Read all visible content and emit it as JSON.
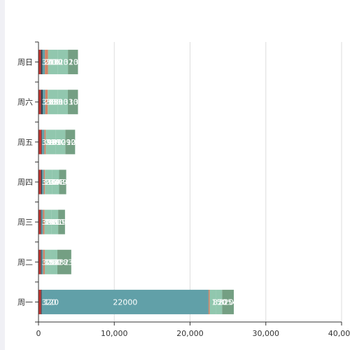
{
  "chart_data": {
    "type": "bar",
    "orientation": "horizontal",
    "stacked": true,
    "categories": [
      "周一",
      "周二",
      "周三",
      "周四",
      "周五",
      "周六",
      "周日"
    ],
    "series": [
      {
        "values": [
          320,
          302,
          301,
          334,
          390,
          330,
          320
        ]
      },
      {
        "values": [
          120,
          132,
          101,
          134,
          90,
          230,
          210
        ]
      },
      {
        "values": [
          22000,
          182,
          191,
          234,
          290,
          330,
          310
        ]
      },
      {
        "values": [
          150,
          212,
          201,
          154,
          190,
          330,
          410
        ]
      },
      {
        "values": [
          820,
          832,
          901,
          934,
          1290,
          1330,
          1320
        ]
      },
      {
        "values": [
          820,
          832,
          901,
          934,
          1290,
          1330,
          1320
        ]
      },
      {
        "values": [
          1544,
          1832,
          901,
          934,
          1290,
          1330,
          1320
        ]
      },
      {
        "values": [
          0,
          0,
          0,
          0,
          0,
          0,
          0
        ]
      }
    ],
    "colors": [
      "#c23531",
      "#2f4554",
      "#61a0a8",
      "#d48265",
      "#91c7ae",
      "#91c7ae",
      "#749f83",
      "#ca8622"
    ],
    "xlim": [
      0,
      40000
    ],
    "xticks": [
      "0",
      "10,000",
      "20,000",
      "30,000",
      "40,000"
    ],
    "grid": true,
    "title": "",
    "xlabel": "",
    "ylabel": ""
  }
}
